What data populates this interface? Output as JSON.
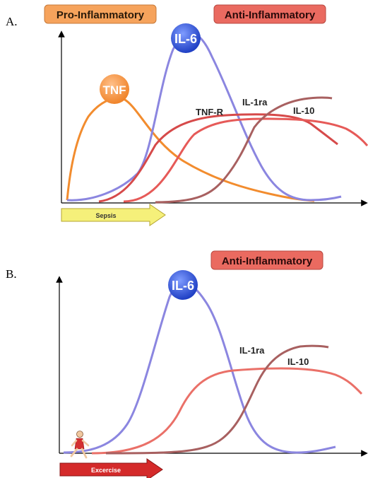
{
  "panel_a": {
    "letter": "A.",
    "pro_label": "Pro-Inflammatory",
    "anti_label": "Anti-Inflammatory",
    "arrow_label": "Sepsis",
    "curves": [
      {
        "name": "TNF",
        "color": "#f28c2e",
        "style": "bubble",
        "bubble_color": "#f49a4a"
      },
      {
        "name": "IL-6",
        "color": "#8b86e0",
        "style": "bubble",
        "bubble_color": "#3557d8"
      },
      {
        "name": "TNF-R",
        "color": "#d64a4a",
        "style": "text"
      },
      {
        "name": "IL-1ra",
        "color": "#a86060",
        "style": "text"
      },
      {
        "name": "IL-10",
        "color": "#ea7068",
        "style": "text"
      },
      {
        "name": "",
        "color": "#e65a58",
        "style": "none"
      }
    ]
  },
  "panel_b": {
    "letter": "B.",
    "anti_label": "Anti-Inflammatory",
    "arrow_label": "Excercise",
    "curves": [
      {
        "name": "IL-6",
        "color": "#8b86e0",
        "style": "bubble",
        "bubble_color": "#3557d8"
      },
      {
        "name": "IL-1ra",
        "color": "#a86060",
        "style": "text"
      },
      {
        "name": "IL-10",
        "color": "#ea7068",
        "style": "text"
      }
    ]
  },
  "colors": {
    "pro_box": "#f6a35c",
    "anti_box": "#ea6a60",
    "sepsis_arrow": "#f5f07a",
    "exercise_arrow": "#d42a2a",
    "runner_body": "#d43030",
    "runner_skin": "#f0c8a0"
  }
}
